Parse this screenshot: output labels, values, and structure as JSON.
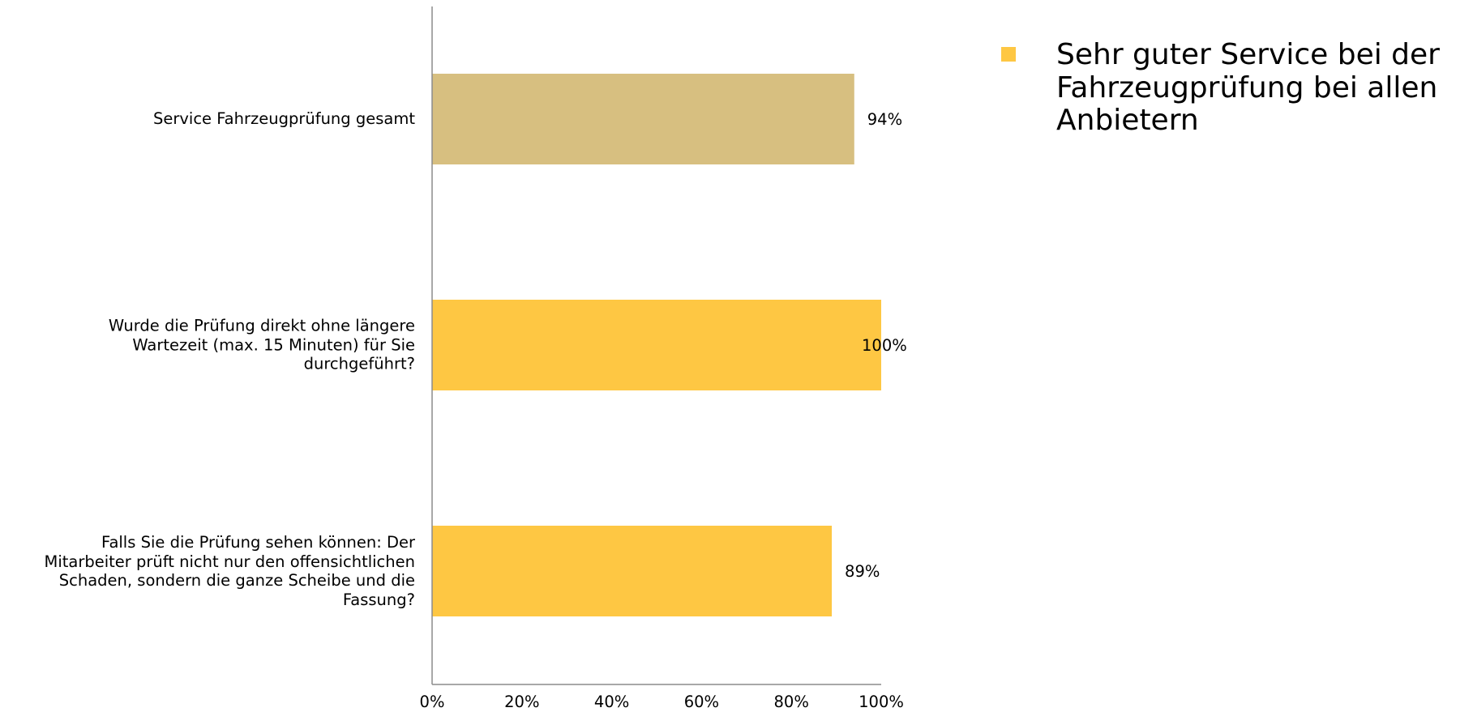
{
  "chart_data": {
    "type": "bar",
    "orientation": "horizontal",
    "categories": [
      "Service Fahrzeugprüfung gesamt",
      "Wurde die Prüfung direkt ohne längere\nWartezeit (max. 15 Minuten) für Sie\ndurchgeführt?",
      "Falls Sie die Prüfung sehen können: Der\nMitarbeiter prüft nicht nur den offensichtlichen\nSchaden, sondern die ganze Scheibe und die\nFassung?"
    ],
    "series": [
      {
        "name": "Sehr guter Service bei der Fahrzeugprüfung bei allen Anbietern",
        "values": [
          94,
          100,
          89
        ]
      }
    ],
    "value_labels": [
      "94%",
      "100%",
      "89%"
    ],
    "bar_colors": [
      "#d7bf80",
      "#fec743",
      "#fec743"
    ],
    "xlim": [
      0,
      100
    ],
    "xticks": [
      "0%",
      "20%",
      "40%",
      "60%",
      "80%",
      "100%"
    ],
    "xlabel": "",
    "ylabel": "",
    "grid": false,
    "legend_position": "top-right",
    "legend_color": "#fec743",
    "axis_color": "#8c8c8c"
  }
}
